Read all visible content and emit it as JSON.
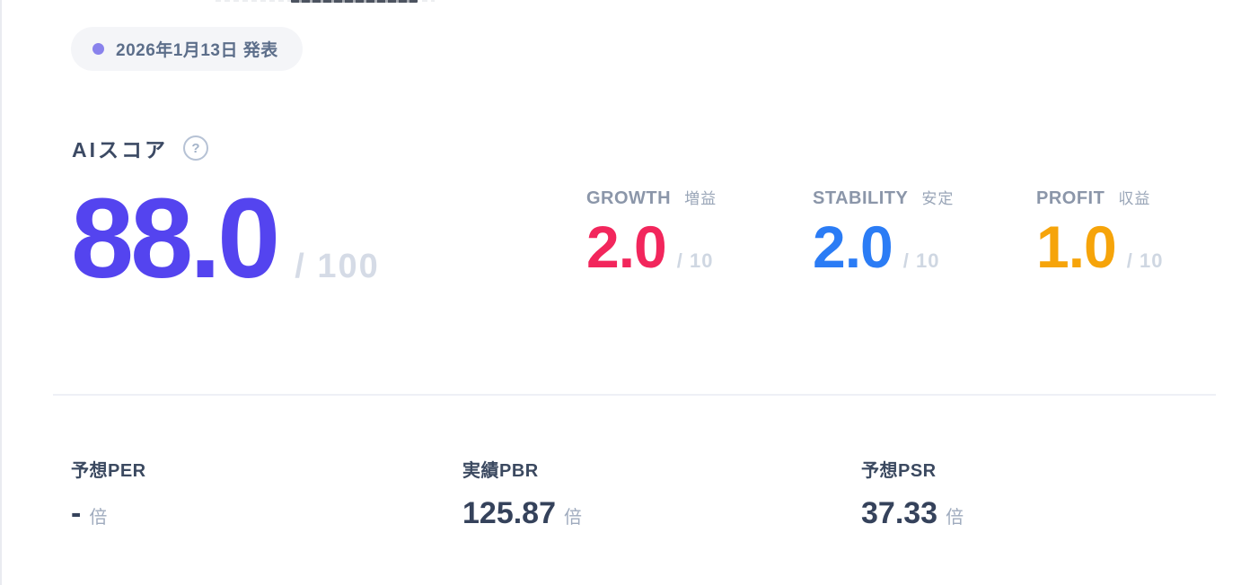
{
  "announcement": {
    "date_label": "2026年1月13日 発表"
  },
  "ai_score": {
    "title": "AIスコア",
    "help_icon_glyph": "?",
    "value": "88.0",
    "max_label": "/ 100",
    "subscores": [
      {
        "label_en": "GROWTH",
        "label_jp": "増益",
        "value": "2.0",
        "max_label": "/ 10",
        "color": "#f2265c"
      },
      {
        "label_en": "STABILITY",
        "label_jp": "安定",
        "value": "2.0",
        "max_label": "/ 10",
        "color": "#2b7cf5"
      },
      {
        "label_en": "PROFIT",
        "label_jp": "収益",
        "value": "1.0",
        "max_label": "/ 10",
        "color": "#f6a40a"
      }
    ]
  },
  "metrics": [
    {
      "label": "予想PER",
      "value": "-",
      "unit": "倍"
    },
    {
      "label": "実績PBR",
      "value": "125.87",
      "unit": "倍"
    },
    {
      "label": "予想PSR",
      "value": "37.33",
      "unit": "倍"
    }
  ],
  "colors": {
    "score_purple": "#5444ef",
    "badge_dot_purple": "#8982ec",
    "growth_pink": "#f2265c",
    "stability_blue": "#2b7cf5",
    "profit_orange": "#f6a40a"
  }
}
